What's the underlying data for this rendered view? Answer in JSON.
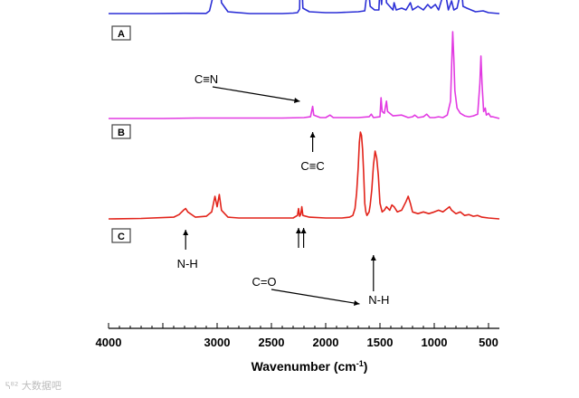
{
  "chart_data": {
    "type": "line",
    "xlabel": "Wavenumber (cm",
    "xlabel_sup": "-1",
    "xlabel_suffix": ")",
    "xlim": [
      4000,
      400
    ],
    "x_reversed": true,
    "xticks": [
      4000,
      3000,
      2500,
      2000,
      1500,
      1000,
      500
    ],
    "ytick_labels_shown": false,
    "grid": false,
    "legend": "none",
    "series": [
      {
        "name": "A",
        "color": "#2b2fd6",
        "points": [
          [
            4000,
            0
          ],
          [
            3600,
            0
          ],
          [
            3300,
            -0.3
          ],
          [
            3100,
            -0.2
          ],
          [
            3070,
            -3
          ],
          [
            3040,
            -18
          ],
          [
            3020,
            -45
          ],
          [
            3000,
            -22
          ],
          [
            2985,
            -55
          ],
          [
            2960,
            -12
          ],
          [
            2900,
            -2
          ],
          [
            2700,
            0
          ],
          [
            2400,
            0
          ],
          [
            2300,
            -0.5
          ],
          [
            2260,
            -1
          ],
          [
            2240,
            -5
          ],
          [
            2230,
            -100
          ],
          [
            2222,
            -40
          ],
          [
            2210,
            -6
          ],
          [
            2150,
            -2
          ],
          [
            2000,
            -1
          ],
          [
            1950,
            -1
          ],
          [
            1900,
            -1
          ],
          [
            1700,
            -2
          ],
          [
            1640,
            -3
          ],
          [
            1610,
            -32
          ],
          [
            1590,
            -8
          ],
          [
            1550,
            -4
          ],
          [
            1510,
            -4
          ],
          [
            1500,
            -30
          ],
          [
            1485,
            -10
          ],
          [
            1470,
            -42
          ],
          [
            1455,
            -46
          ],
          [
            1440,
            -12
          ],
          [
            1380,
            -4
          ],
          [
            1370,
            -12
          ],
          [
            1350,
            -4
          ],
          [
            1300,
            -6
          ],
          [
            1260,
            -4
          ],
          [
            1220,
            -12
          ],
          [
            1200,
            -4
          ],
          [
            1150,
            -8
          ],
          [
            1100,
            -4
          ],
          [
            1060,
            -10
          ],
          [
            1030,
            -6
          ],
          [
            990,
            -10
          ],
          [
            960,
            -4
          ],
          [
            920,
            -20
          ],
          [
            905,
            -28
          ],
          [
            890,
            -18
          ],
          [
            870,
            -4
          ],
          [
            840,
            -14
          ],
          [
            820,
            -4
          ],
          [
            790,
            -6
          ],
          [
            760,
            -22
          ],
          [
            750,
            -30
          ],
          [
            735,
            -8
          ],
          [
            700,
            -6
          ],
          [
            660,
            -4
          ],
          [
            620,
            -2
          ],
          [
            550,
            -3
          ],
          [
            500,
            -1
          ],
          [
            400,
            0
          ]
        ]
      },
      {
        "name": "B",
        "color": "#e23ae2",
        "points": [
          [
            4000,
            0
          ],
          [
            3500,
            0
          ],
          [
            3200,
            -0.5
          ],
          [
            3000,
            -0.5
          ],
          [
            2800,
            -0.5
          ],
          [
            2400,
            -0.5
          ],
          [
            2200,
            -1
          ],
          [
            2140,
            -2
          ],
          [
            2120,
            -14
          ],
          [
            2110,
            -4
          ],
          [
            2050,
            -1
          ],
          [
            2000,
            -1
          ],
          [
            1960,
            -4
          ],
          [
            1930,
            -1
          ],
          [
            1850,
            -1
          ],
          [
            1700,
            -1
          ],
          [
            1600,
            -2
          ],
          [
            1580,
            -5
          ],
          [
            1560,
            -1
          ],
          [
            1500,
            -2
          ],
          [
            1490,
            -24
          ],
          [
            1480,
            -8
          ],
          [
            1460,
            -6
          ],
          [
            1440,
            -20
          ],
          [
            1430,
            -8
          ],
          [
            1380,
            -3
          ],
          [
            1300,
            -4
          ],
          [
            1240,
            -1
          ],
          [
            1200,
            -2
          ],
          [
            1180,
            -4
          ],
          [
            1150,
            -1
          ],
          [
            1100,
            -2
          ],
          [
            1070,
            -5
          ],
          [
            1040,
            -1
          ],
          [
            1000,
            -1
          ],
          [
            960,
            -2
          ],
          [
            920,
            -1
          ],
          [
            880,
            -4
          ],
          [
            850,
            -20
          ],
          [
            840,
            -60
          ],
          [
            830,
            -100
          ],
          [
            820,
            -70
          ],
          [
            810,
            -32
          ],
          [
            790,
            -12
          ],
          [
            760,
            -6
          ],
          [
            720,
            -3
          ],
          [
            680,
            -2
          ],
          [
            640,
            -3
          ],
          [
            600,
            -5
          ],
          [
            580,
            -40
          ],
          [
            570,
            -72
          ],
          [
            560,
            -40
          ],
          [
            545,
            -8
          ],
          [
            530,
            -12
          ],
          [
            520,
            -4
          ],
          [
            500,
            -6
          ],
          [
            480,
            -2
          ],
          [
            460,
            -2
          ],
          [
            400,
            0
          ]
        ]
      },
      {
        "name": "C",
        "color": "#e2231a",
        "points": [
          [
            4000,
            0
          ],
          [
            3700,
            -0.5
          ],
          [
            3400,
            -2
          ],
          [
            3350,
            -5
          ],
          [
            3310,
            -10
          ],
          [
            3290,
            -12
          ],
          [
            3270,
            -8
          ],
          [
            3200,
            -2
          ],
          [
            3100,
            -3
          ],
          [
            3050,
            -8
          ],
          [
            3030,
            -20
          ],
          [
            3020,
            -26
          ],
          [
            3000,
            -14
          ],
          [
            2980,
            -28
          ],
          [
            2960,
            -10
          ],
          [
            2900,
            -2
          ],
          [
            2800,
            -1
          ],
          [
            2400,
            -1
          ],
          [
            2300,
            -1
          ],
          [
            2260,
            -4
          ],
          [
            2250,
            -12
          ],
          [
            2240,
            -3
          ],
          [
            2230,
            -5
          ],
          [
            2220,
            -14
          ],
          [
            2210,
            -4
          ],
          [
            2150,
            -2
          ],
          [
            2000,
            -1
          ],
          [
            1850,
            -1
          ],
          [
            1780,
            -2
          ],
          [
            1750,
            -4
          ],
          [
            1730,
            -12
          ],
          [
            1715,
            -30
          ],
          [
            1700,
            -60
          ],
          [
            1690,
            -88
          ],
          [
            1680,
            -100
          ],
          [
            1670,
            -96
          ],
          [
            1660,
            -80
          ],
          [
            1650,
            -52
          ],
          [
            1640,
            -18
          ],
          [
            1630,
            -8
          ],
          [
            1620,
            -4
          ],
          [
            1600,
            -8
          ],
          [
            1590,
            -16
          ],
          [
            1575,
            -34
          ],
          [
            1560,
            -62
          ],
          [
            1545,
            -78
          ],
          [
            1530,
            -70
          ],
          [
            1515,
            -50
          ],
          [
            1500,
            -18
          ],
          [
            1480,
            -8
          ],
          [
            1460,
            -10
          ],
          [
            1440,
            -14
          ],
          [
            1410,
            -10
          ],
          [
            1390,
            -16
          ],
          [
            1370,
            -14
          ],
          [
            1340,
            -8
          ],
          [
            1300,
            -10
          ],
          [
            1260,
            -20
          ],
          [
            1240,
            -26
          ],
          [
            1220,
            -18
          ],
          [
            1200,
            -8
          ],
          [
            1150,
            -6
          ],
          [
            1100,
            -8
          ],
          [
            1050,
            -6
          ],
          [
            1000,
            -8
          ],
          [
            960,
            -10
          ],
          [
            920,
            -8
          ],
          [
            880,
            -12
          ],
          [
            860,
            -14
          ],
          [
            840,
            -10
          ],
          [
            800,
            -6
          ],
          [
            760,
            -8
          ],
          [
            720,
            -4
          ],
          [
            680,
            -5
          ],
          [
            640,
            -3
          ],
          [
            600,
            -4
          ],
          [
            560,
            -2
          ],
          [
            500,
            -1
          ],
          [
            400,
            0
          ]
        ]
      }
    ],
    "panel_labels": [
      "A",
      "B",
      "C"
    ],
    "annotations": [
      {
        "text": "C≡N",
        "panel": "A",
        "x": 2230
      },
      {
        "text": "C≡C",
        "panel": "B",
        "x": 2120
      },
      {
        "text": "N-H",
        "panel": "C",
        "x": 3290
      },
      {
        "text": "",
        "panel": "C",
        "x": 2250
      },
      {
        "text": "",
        "panel": "C",
        "x": 2220
      },
      {
        "text": "C=O",
        "panel": "C",
        "x": 1680
      },
      {
        "text": "N-H",
        "panel": "C",
        "x": 1560
      }
    ]
  },
  "watermark": "ᢿ⁸² 大数据吧"
}
